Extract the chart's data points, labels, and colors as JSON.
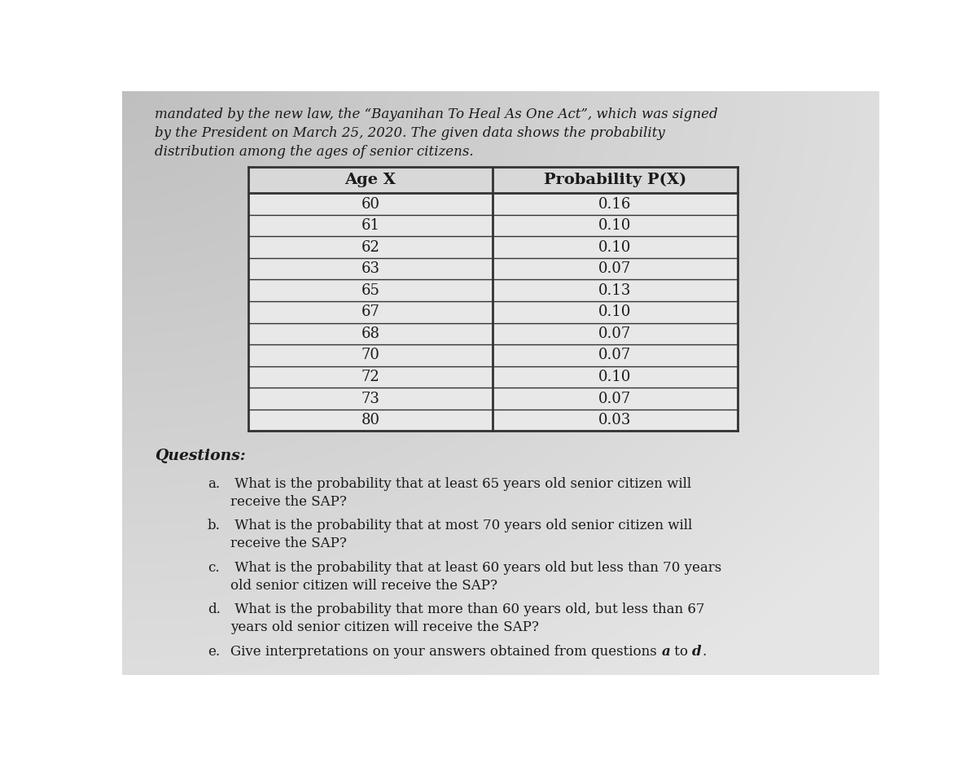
{
  "header_line1": "mandated by the new law, the “Bayanihan To Heal As One Act”, which was signed",
  "header_line2": "by the President on March 25, 2020. The given data shows the probability",
  "header_line3": "distribution among the ages of senior citizens.",
  "col1_header": "Age X",
  "col2_header": "Probability P(X)",
  "ages": [
    "60",
    "61",
    "62",
    "63",
    "65",
    "67",
    "68",
    "70",
    "72",
    "73",
    "80"
  ],
  "probs": [
    "0.16",
    "0.10",
    "0.10",
    "0.07",
    "0.13",
    "0.10",
    "0.07",
    "0.07",
    "0.10",
    "0.07",
    "0.03"
  ],
  "questions_label": "Questions:",
  "q_a_line1": "a.  What is the probability that at least 65 years old senior citizen will",
  "q_a_line2": "     receive the SAP?",
  "q_b_line1": "b.  What is the probability that at most 70 years old senior citizen will",
  "q_b_line2": "     receive the SAP?",
  "q_c_line1": "c.  What is the probability that at least 60 years old but less than 70 years",
  "q_c_line2": "     old senior citizen will receive the SAP?",
  "q_d_line1": "d.  What is the probability that more than 60 years old, but less than 67",
  "q_d_line2": "     years old senior citizen will receive the SAP?",
  "q_e_line1": "e.  Give interpretations on your answers obtained from questions ",
  "q_e_bold": "a",
  "q_e_mid": " to ",
  "q_e_bold2": "d",
  "q_e_end": ".",
  "bg_light": "#cccccc",
  "bg_dark": "#aaaaaa",
  "table_bg": "#e8e8e8",
  "table_header_bg": "#d8d8d8",
  "text_color": "#1a1a1a",
  "table_line_color": "#333333"
}
